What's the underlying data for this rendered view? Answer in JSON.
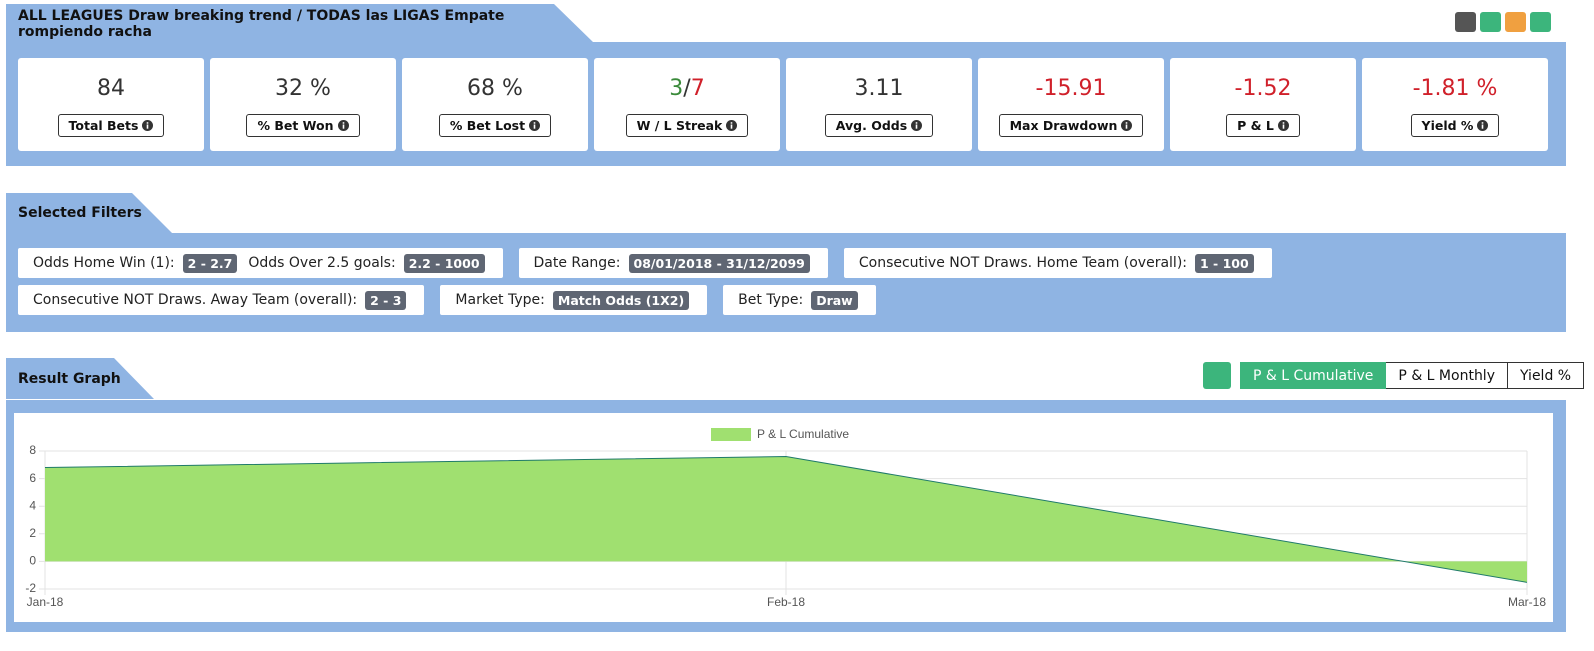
{
  "header": {
    "title": "ALL LEAGUES Draw breaking trend / TODAS las LIGAS Empate rompiendo racha"
  },
  "stats": [
    {
      "value": "84",
      "label": "Total Bets",
      "color": "#333333"
    },
    {
      "value": "32 %",
      "label": "% Bet Won",
      "color": "#333333"
    },
    {
      "value": "68 %",
      "label": "% Bet Lost",
      "color": "#333333"
    },
    {
      "wins": "3",
      "separator": "/",
      "losses": "7",
      "label": "W / L Streak",
      "win_color": "#3a8a3a",
      "loss_color": "#d0202a",
      "color": "#333333"
    },
    {
      "value": "3.11",
      "label": "Avg. Odds",
      "color": "#333333"
    },
    {
      "value": "-15.91",
      "label": "Max Drawdown",
      "color": "#d0202a"
    },
    {
      "value": "-1.52",
      "label": "P & L",
      "color": "#d0202a"
    },
    {
      "value": "-1.81 %",
      "label": "Yield %",
      "color": "#d0202a"
    }
  ],
  "filters": {
    "title": "Selected Filters",
    "groups": [
      [
        {
          "label": "Odds Home Win (1):",
          "value": "2 - 2.7"
        },
        {
          "label": "Odds Over 2.5 goals:",
          "value": "2.2 - 1000"
        }
      ],
      [
        {
          "label": "Date Range:",
          "value": "08/01/2018 - 31/12/2099"
        }
      ],
      [
        {
          "label": "Consecutive NOT Draws. Home Team (overall):",
          "value": "1 - 100"
        }
      ],
      [
        {
          "label": "Consecutive NOT Draws. Away Team (overall):",
          "value": "2 - 3"
        }
      ],
      [
        {
          "label": "Market Type:",
          "value": "Match Odds (1X2)"
        }
      ],
      [
        {
          "label": "Bet Type:",
          "value": "Draw"
        }
      ]
    ]
  },
  "result_graph": {
    "title": "Result Graph",
    "buttons": [
      "P & L Cumulative",
      "P & L Monthly",
      "Yield %"
    ],
    "active": 0
  },
  "chart_data": {
    "type": "area",
    "categories": [
      "Jan-18",
      "Feb-18",
      "Mar-18"
    ],
    "series": [
      {
        "name": "P & L Cumulative",
        "color": "#a0e070",
        "line_color": "#1f7a6a",
        "values": [
          6.8,
          7.6,
          -1.52
        ]
      }
    ],
    "ylim": [
      -2,
      8
    ],
    "yticks": [
      -2,
      0,
      2,
      4,
      6,
      8
    ],
    "grid": true
  }
}
